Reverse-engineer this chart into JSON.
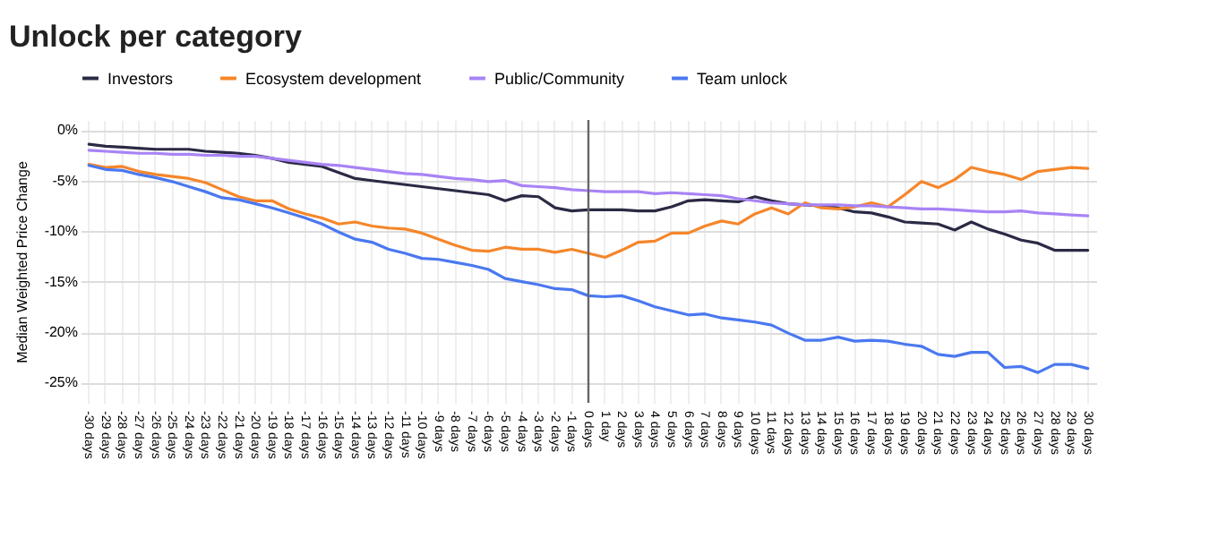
{
  "chart_data": {
    "type": "line",
    "title": "Unlock per category",
    "ylabel": "Median Weighted Price Change",
    "categories": [
      "-30 days",
      "-29 days",
      "-28 days",
      "-27 days",
      "-26 days",
      "-25 days",
      "-24 days",
      "-23 days",
      "-22 days",
      "-21 days",
      "-20 days",
      "-19 days",
      "-18 days",
      "-17 days",
      "-16 days",
      "-15 days",
      "-14 days",
      "-13 days",
      "-12 days",
      "-11 days",
      "-10 days",
      "-9 days",
      "-8 days",
      "-7 days",
      "-6 days",
      "-5 days",
      "-4 days",
      "-3 days",
      "-2 days",
      "-1 days",
      "0 days",
      "1 day",
      "2 days",
      "3 days",
      "4 days",
      "5 days",
      "6 days",
      "7 days",
      "8 days",
      "9 days",
      "10 days",
      "11 days",
      "12 days",
      "13 days",
      "14 days",
      "15 days",
      "16 days",
      "17 days",
      "18 days",
      "19 days",
      "20 days",
      "21 days",
      "22 days",
      "23 days",
      "24 days",
      "25 days",
      "26 days",
      "27 days",
      "28 days",
      "29 days",
      "30 days"
    ],
    "series": [
      {
        "name": "Investors",
        "color": "#2b2a45",
        "values": [
          -1.4,
          -1.6,
          -1.7,
          -1.8,
          -1.9,
          -1.9,
          -1.9,
          -2.1,
          -2.2,
          -2.3,
          -2.5,
          -2.8,
          -3.2,
          -3.4,
          -3.6,
          -4.2,
          -4.8,
          -5.0,
          -5.2,
          -5.4,
          -5.6,
          -5.8,
          -6.0,
          -6.2,
          -6.4,
          -7.0,
          -6.5,
          -6.6,
          -7.7,
          -8.0,
          -7.9,
          -7.9,
          -7.9,
          -8.0,
          -8.0,
          -7.6,
          -7.0,
          -6.9,
          -7.0,
          -7.1,
          -6.6,
          -7.0,
          -7.3,
          -7.4,
          -7.5,
          -7.7,
          -8.1,
          -8.2,
          -8.6,
          -9.1,
          -9.2,
          -9.3,
          -9.9,
          -9.1,
          -9.8,
          -10.3,
          -10.9,
          -11.2,
          -11.9,
          -11.9,
          -11.9
        ]
      },
      {
        "name": "Ecosystem development",
        "color": "#f5862a",
        "values": [
          -3.4,
          -3.7,
          -3.6,
          -4.1,
          -4.4,
          -4.6,
          -4.8,
          -5.2,
          -5.9,
          -6.6,
          -7.0,
          -7.0,
          -7.8,
          -8.3,
          -8.7,
          -9.3,
          -9.1,
          -9.5,
          -9.7,
          -9.8,
          -10.2,
          -10.8,
          -11.4,
          -11.9,
          -12.0,
          -11.6,
          -11.8,
          -11.8,
          -12.1,
          -11.8,
          -12.2,
          -12.6,
          -11.9,
          -11.1,
          -11.0,
          -10.2,
          -10.2,
          -9.5,
          -9.0,
          -9.3,
          -8.3,
          -7.7,
          -8.3,
          -7.2,
          -7.7,
          -7.8,
          -7.6,
          -7.2,
          -7.6,
          -6.4,
          -5.1,
          -5.7,
          -4.9,
          -3.7,
          -4.1,
          -4.4,
          -4.9,
          -4.1,
          -3.9,
          -3.7,
          -3.8
        ]
      },
      {
        "name": "Public/Community",
        "color": "#a883f5",
        "values": [
          -2.0,
          -2.1,
          -2.2,
          -2.3,
          -2.3,
          -2.4,
          -2.4,
          -2.5,
          -2.5,
          -2.6,
          -2.6,
          -2.8,
          -3.0,
          -3.2,
          -3.4,
          -3.5,
          -3.7,
          -3.9,
          -4.1,
          -4.3,
          -4.4,
          -4.6,
          -4.8,
          -4.9,
          -5.1,
          -5.0,
          -5.5,
          -5.6,
          -5.7,
          -5.9,
          -6.0,
          -6.1,
          -6.1,
          -6.1,
          -6.3,
          -6.2,
          -6.3,
          -6.4,
          -6.5,
          -6.8,
          -7.0,
          -7.2,
          -7.3,
          -7.4,
          -7.4,
          -7.4,
          -7.5,
          -7.5,
          -7.6,
          -7.7,
          -7.8,
          -7.8,
          -7.9,
          -8.0,
          -8.1,
          -8.1,
          -8.0,
          -8.2,
          -8.3,
          -8.4,
          -8.5
        ]
      },
      {
        "name": "Team unlock",
        "color": "#4a78f0",
        "values": [
          -3.5,
          -3.9,
          -4.0,
          -4.4,
          -4.7,
          -5.1,
          -5.6,
          -6.1,
          -6.7,
          -6.9,
          -7.3,
          -7.7,
          -8.2,
          -8.7,
          -9.3,
          -10.1,
          -10.8,
          -11.1,
          -11.8,
          -12.2,
          -12.7,
          -12.8,
          -13.1,
          -13.4,
          -13.8,
          -14.7,
          -15.0,
          -15.3,
          -15.7,
          -15.8,
          -16.4,
          -16.5,
          -16.4,
          -16.9,
          -17.5,
          -17.9,
          -18.3,
          -18.2,
          -18.6,
          -18.8,
          -19.0,
          -19.3,
          -20.1,
          -20.8,
          -20.8,
          -20.5,
          -20.9,
          -20.8,
          -20.9,
          -21.2,
          -21.4,
          -22.2,
          -22.4,
          -22.0,
          -22.0,
          -23.5,
          -23.4,
          -24.0,
          -23.2,
          -23.2,
          -23.6
        ]
      }
    ],
    "ylim": [
      -27,
      1
    ],
    "yticks": [
      {
        "value": 0,
        "label": "0%"
      },
      {
        "value": -5,
        "label": "-5%"
      },
      {
        "value": -10,
        "label": "-10%"
      },
      {
        "value": -15,
        "label": "-15%"
      },
      {
        "value": -20,
        "label": "-20%"
      },
      {
        "value": -25,
        "label": "-25%"
      }
    ],
    "ref_lines": [
      {
        "axis": "x",
        "value": "0 days",
        "color": "#666666"
      }
    ],
    "grid": true,
    "legend": "top"
  }
}
